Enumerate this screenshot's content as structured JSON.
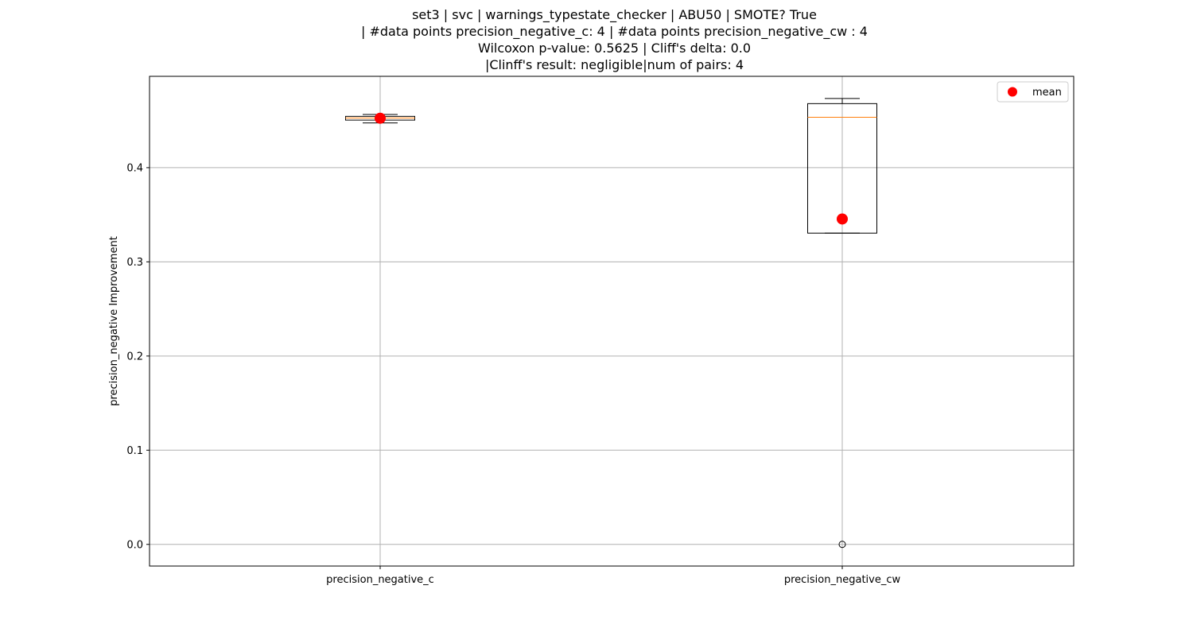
{
  "chart_data": {
    "type": "box",
    "title_lines": [
      "set3 | svc | warnings_typestate_checker | ABU50 | SMOTE? True",
      "| #data points precision_negative_c: 4 | #data points precision_negative_cw : 4",
      "Wilcoxon p-value: 0.5625 | Cliff's delta: 0.0",
      "|Clinff's result: negligible|num of pairs: 4"
    ],
    "ylabel": "precision_negative Improvement",
    "xlabel": "",
    "ylim": [
      -0.023,
      0.497
    ],
    "yticks": [
      0.0,
      0.1,
      0.2,
      0.3,
      0.4
    ],
    "ytick_labels": [
      "0.0",
      "0.1",
      "0.2",
      "0.3",
      "0.4"
    ],
    "grid": true,
    "categories": [
      "precision_negative_c",
      "precision_negative_cw"
    ],
    "boxes": [
      {
        "name": "precision_negative_c",
        "whisker_low": 0.4475,
        "q1": 0.4505,
        "median": 0.4528,
        "q3": 0.4545,
        "whisker_high": 0.4565,
        "mean": 0.4525,
        "outliers": []
      },
      {
        "name": "precision_negative_cw",
        "whisker_low": 0.3305,
        "q1": 0.3305,
        "median": 0.4535,
        "q3": 0.468,
        "whisker_high": 0.4735,
        "mean": 0.3455,
        "outliers": [
          0.0
        ]
      }
    ],
    "legend": {
      "position": "top-right",
      "entries": [
        {
          "label": "mean",
          "color": "#ff0000",
          "marker": "circle"
        }
      ]
    },
    "colors": {
      "box_edge": "#000000",
      "median": "#ff7f0e",
      "mean": "#ff0000",
      "grid": "#b0b0b0"
    }
  }
}
